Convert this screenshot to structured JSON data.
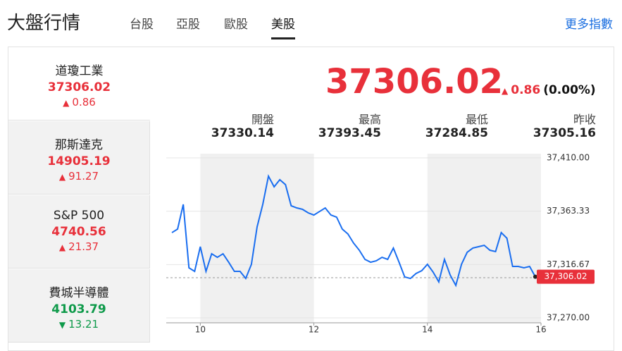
{
  "header": {
    "title": "大盤行情",
    "tabs": [
      "台股",
      "亞股",
      "歐股",
      "美股"
    ],
    "active_tab": 3,
    "more": "更多指數"
  },
  "sidebar": [
    {
      "name": "道瓊工業",
      "price": 37306.02,
      "change": 0.86,
      "direction": "up"
    },
    {
      "name": "那斯達克",
      "price": 14905.19,
      "change": 91.27,
      "direction": "up"
    },
    {
      "name": "S&P 500",
      "price": 4740.56,
      "change": 21.37,
      "direction": "up"
    },
    {
      "name": "費城半導體",
      "price": 4103.79,
      "change": 13.21,
      "direction": "down"
    }
  ],
  "active_index": 0,
  "quote": {
    "price": 37306.02,
    "change": 0.86,
    "change_pct": "(0.00%)",
    "direction": "up"
  },
  "stats": [
    {
      "label": "開盤",
      "value": 37330.14
    },
    {
      "label": "最高",
      "value": 37393.45
    },
    {
      "label": "最低",
      "value": 37284.85
    },
    {
      "label": "昨收",
      "value": 37305.16
    }
  ],
  "chart": {
    "type": "line",
    "color": "#1a6ef0",
    "x": [
      9.5,
      9.6,
      9.7,
      9.8,
      9.9,
      10.0,
      10.1,
      10.2,
      10.3,
      10.4,
      10.5,
      10.6,
      10.7,
      10.8,
      10.9,
      11.0,
      11.1,
      11.2,
      11.3,
      11.4,
      11.5,
      11.6,
      11.7,
      11.8,
      11.9,
      12.0,
      12.1,
      12.2,
      12.3,
      12.4,
      12.5,
      12.6,
      12.7,
      12.8,
      12.9,
      13.0,
      13.1,
      13.2,
      13.3,
      13.4,
      13.5,
      13.6,
      13.7,
      13.8,
      13.9,
      14.0,
      14.1,
      14.2,
      14.3,
      14.4,
      14.5,
      14.6,
      14.7,
      14.8,
      14.9,
      15.0,
      15.1,
      15.2,
      15.3,
      15.4,
      15.5,
      15.6,
      15.7,
      15.8,
      15.9
    ],
    "values": [
      37344.6,
      37347.7,
      37369.3,
      37313.8,
      37310.7,
      37332.3,
      37310.7,
      37326.1,
      37323.0,
      37326.1,
      37318.7,
      37310.7,
      37310.7,
      37304.5,
      37316.9,
      37349.6,
      37369.3,
      37394.0,
      37384.7,
      37390.9,
      37386.6,
      37368.1,
      37366.2,
      37365.0,
      37361.9,
      37360.0,
      37363.1,
      37366.2,
      37360.0,
      37358.2,
      37347.7,
      37343.4,
      37335.4,
      37329.2,
      37321.2,
      37318.7,
      37320.0,
      37323.0,
      37321.2,
      37331.1,
      37318.7,
      37305.8,
      37304.5,
      37308.9,
      37311.3,
      37316.9,
      37310.1,
      37301.5,
      37321.2,
      37307.6,
      37298.4,
      37316.9,
      37327.4,
      37331.1,
      37332.3,
      37333.5,
      37329.2,
      37328.0,
      37344.6,
      37339.7,
      37315.0,
      37315.0,
      37313.8,
      37315.0,
      37306.02
    ],
    "last_label": {
      "value": 37306.02,
      "label": "37,306.02"
    },
    "xlim": [
      9.4,
      16
    ],
    "xticks": [
      10,
      12,
      14,
      16
    ],
    "ylim": [
      37265.7,
      37413.7
    ],
    "yticks": [
      {
        "value": 37410,
        "label": "37,410.00"
      },
      {
        "value": 37363.33,
        "label": "37,363.33"
      },
      {
        "value": 37316.67,
        "label": "37,316.67"
      },
      {
        "value": 37270,
        "label": "37,270.00"
      }
    ],
    "grid": true
  }
}
